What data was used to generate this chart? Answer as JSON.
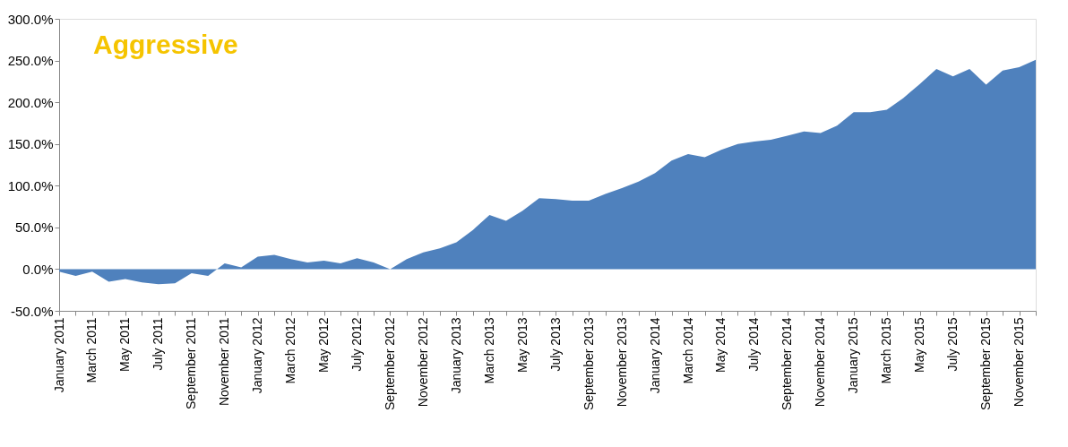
{
  "chart_data": {
    "type": "area",
    "title": "Aggressive",
    "categories": [
      "January 2011",
      null,
      "March 2011",
      null,
      "May 2011",
      null,
      "July 2011",
      null,
      "September 2011",
      null,
      "November 2011",
      null,
      "January 2012",
      null,
      "March 2012",
      null,
      "May 2012",
      null,
      "July 2012",
      null,
      "September 2012",
      null,
      "November 2012",
      null,
      "January 2013",
      null,
      "March 2013",
      null,
      "May 2013",
      null,
      "July 2013",
      null,
      "September 2013",
      null,
      "November 2013",
      null,
      "January 2014",
      null,
      "March 2014",
      null,
      "May 2014",
      null,
      "July 2014",
      null,
      "September 2014",
      null,
      "November 2014",
      null,
      "January 2015",
      null,
      "March 2015",
      null,
      "May 2015",
      null,
      "July 2015",
      null,
      "September 2015",
      null,
      "November 2015",
      null
    ],
    "series": [
      {
        "color": "#4f81bd",
        "values": [
          -3,
          -8,
          -3,
          -15,
          -12,
          -16,
          -18,
          -17,
          -5,
          -8,
          7,
          2,
          15,
          17,
          12,
          8,
          10,
          7,
          13,
          8,
          0,
          12,
          20,
          25,
          32,
          47,
          65,
          58,
          70,
          85,
          84,
          82,
          82,
          90,
          97,
          105,
          115,
          130,
          138,
          134,
          143,
          150,
          153,
          155,
          160,
          165,
          163,
          172,
          188,
          188,
          191,
          205,
          222,
          240,
          231,
          240,
          221,
          238,
          242,
          251
        ]
      }
    ],
    "ylim": [
      -50,
      300
    ],
    "yticks": [
      {
        "value": -50,
        "label": "-50.0%"
      },
      {
        "value": 0,
        "label": "0.0%"
      },
      {
        "value": 50,
        "label": "50.0%"
      },
      {
        "value": 100,
        "label": "100.0%"
      },
      {
        "value": 150,
        "label": "150.0%"
      },
      {
        "value": 200,
        "label": "200.0%"
      },
      {
        "value": 250,
        "label": "250.0%"
      },
      {
        "value": 300,
        "label": "300.0%"
      }
    ],
    "grid": false
  }
}
